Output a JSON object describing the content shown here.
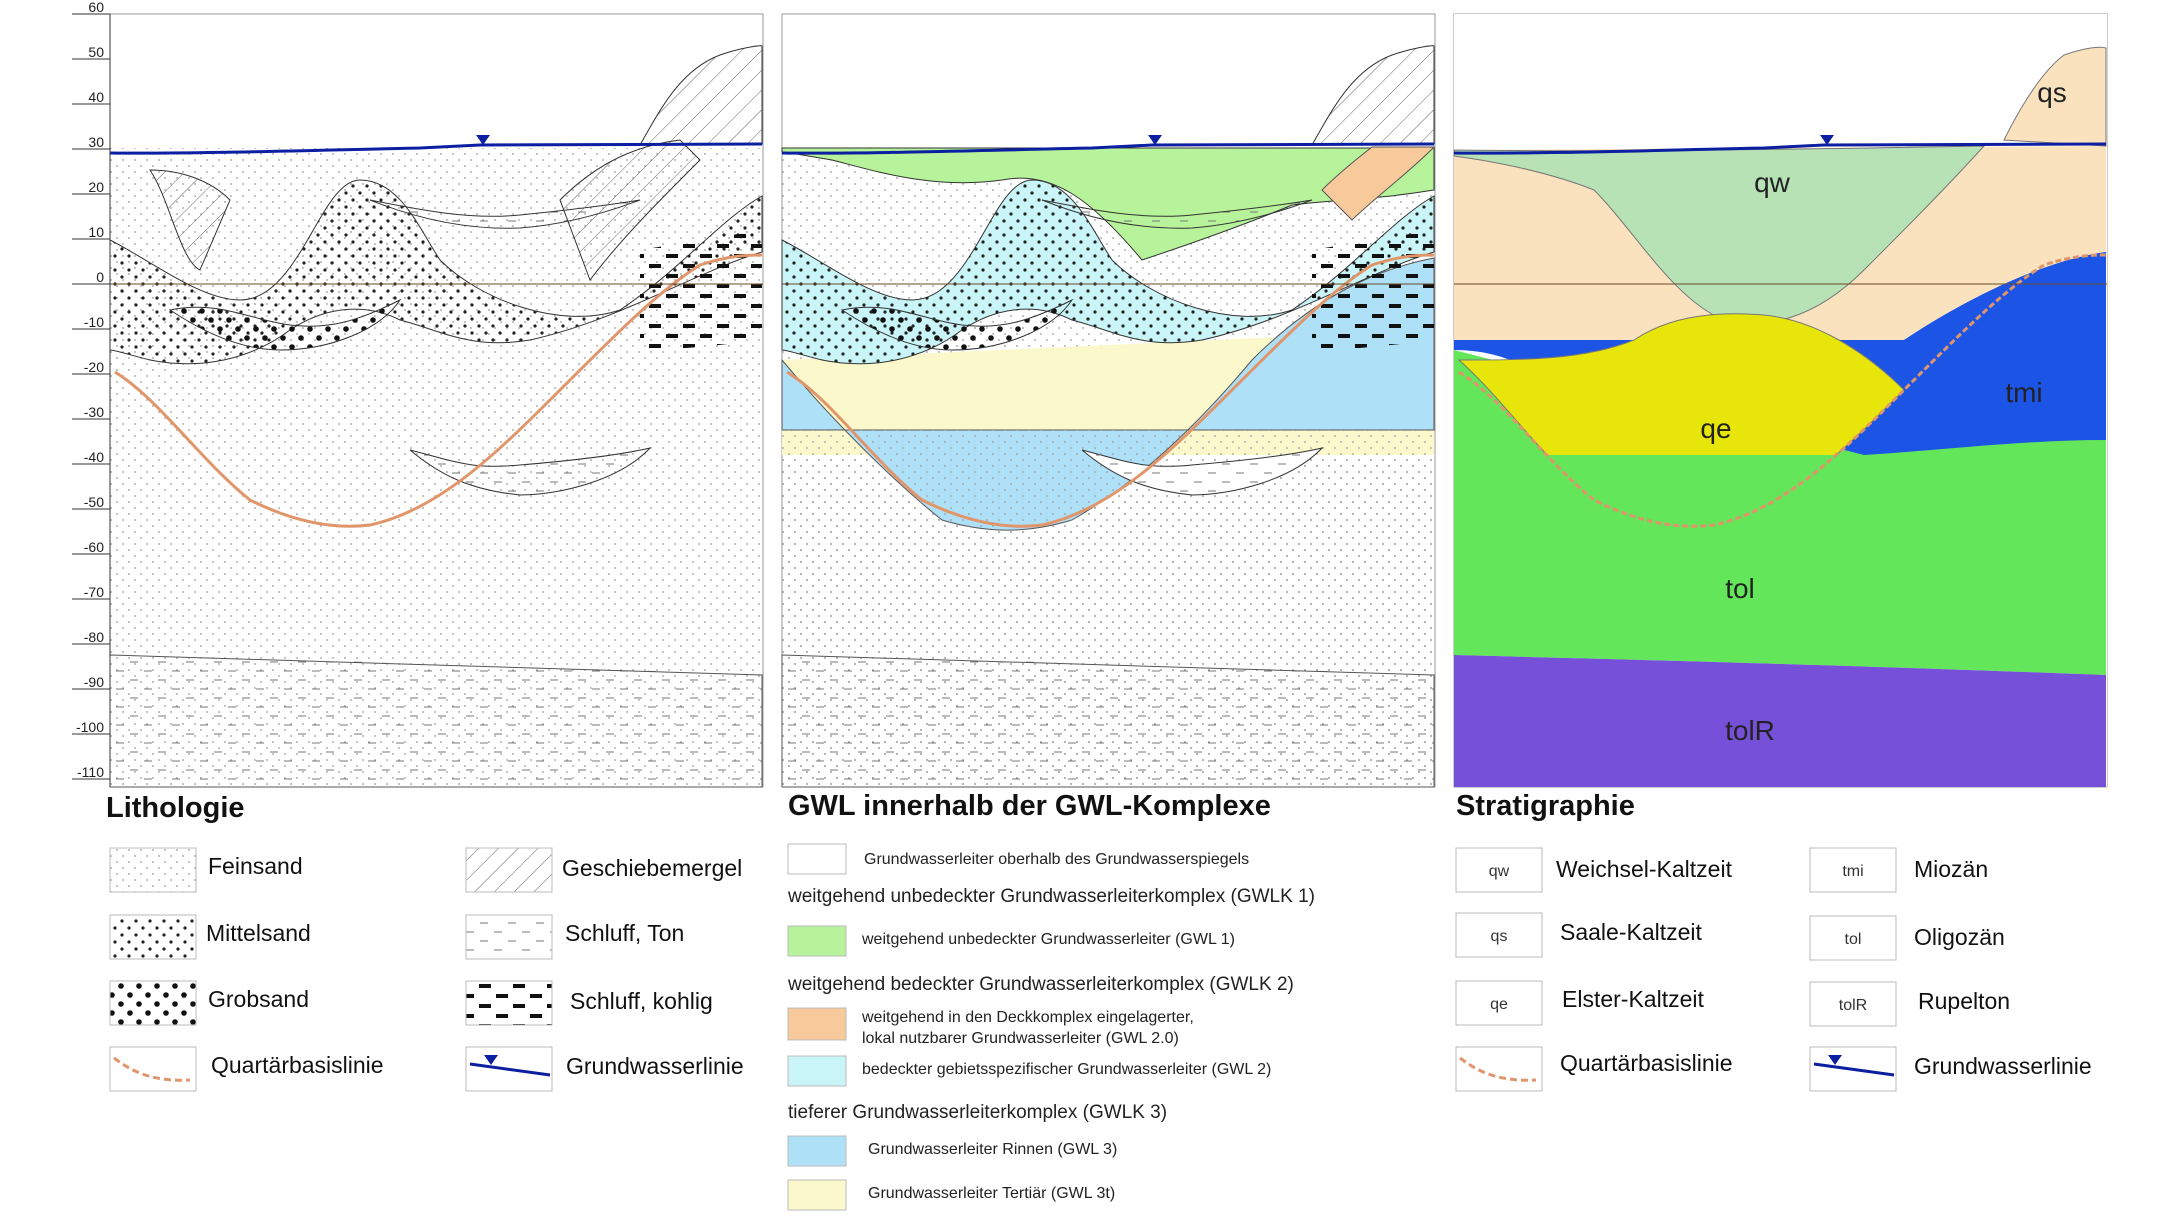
{
  "axis": {
    "ticks": [
      "60",
      "50",
      "40",
      "30",
      "20",
      "10",
      "0",
      "-10",
      "-20",
      "-30",
      "-40",
      "-50",
      "-60",
      "-70",
      "-80",
      "-90",
      "-100",
      "-110"
    ]
  },
  "panel3_labels": [
    "qs",
    "qw",
    "tmi",
    "qe",
    "tol",
    "tolR"
  ],
  "legends": {
    "lithology": {
      "title": "Lithologie",
      "items": [
        "Feinsand",
        "Mittelsand",
        "Grobsand",
        "Quartärbasislinie",
        "Geschiebemergel",
        "Schluff, Ton",
        "Schluff, kohlig",
        "Grundwasserlinie"
      ]
    },
    "gwl": {
      "title": "GWL innerhalb der GWL-Komplexe",
      "top_item": "Grundwasserleiter oberhalb des Grundwasserspiegels",
      "head1": "weitgehend unbedeckter Grundwasserleiterkomplex  (GWLK 1)",
      "item1": "weitgehend unbedeckter Grundwasserleiter  (GWL 1)",
      "head2": "weitgehend bedeckter Grundwasserleiterkomplex  (GWLK 2)",
      "item2a": "weitgehend in den Deckkomplex eingelagerter,",
      "item2b": "lokal nutzbarer  Grundwasserleiter (GWL 2.0)",
      "item3": "bedeckter gebietsspezifischer Grundwasserleiter (GWL 2)",
      "head3": "tieferer Grundwasserleiterkomplex (GWLK 3)",
      "item4": "Grundwasserleiter Rinnen  (GWL 3)",
      "item5": "Grundwasserleiter Tertiär (GWL 3t)"
    },
    "strat": {
      "title": "Stratigraphie",
      "codes": [
        "qw",
        "qs",
        "qe",
        "tmi",
        "tol",
        "tolR"
      ],
      "items": [
        "Weichsel-Kaltzeit",
        "Saale-Kaltzeit",
        "Elster-Kaltzeit",
        "Quartärbasislinie",
        "Miozän",
        "Oligozän",
        "Rupelton",
        "Grundwasserlinie"
      ]
    }
  },
  "colors": {
    "gwl1": "#b6f39a",
    "gwl20": "#f8c99a",
    "gwl2": "#c9f5f8",
    "gwl3": "#aee0f8",
    "gwl3t": "#fbf8cc",
    "qw": "#b7e2b6",
    "qs": "#fae2bf",
    "qe": "#e7e50a",
    "tmi": "#1c55e6",
    "tol": "#64e65a",
    "tolR": "#7650d8",
    "water": "#0b1fa0",
    "base": "#e0956a"
  }
}
